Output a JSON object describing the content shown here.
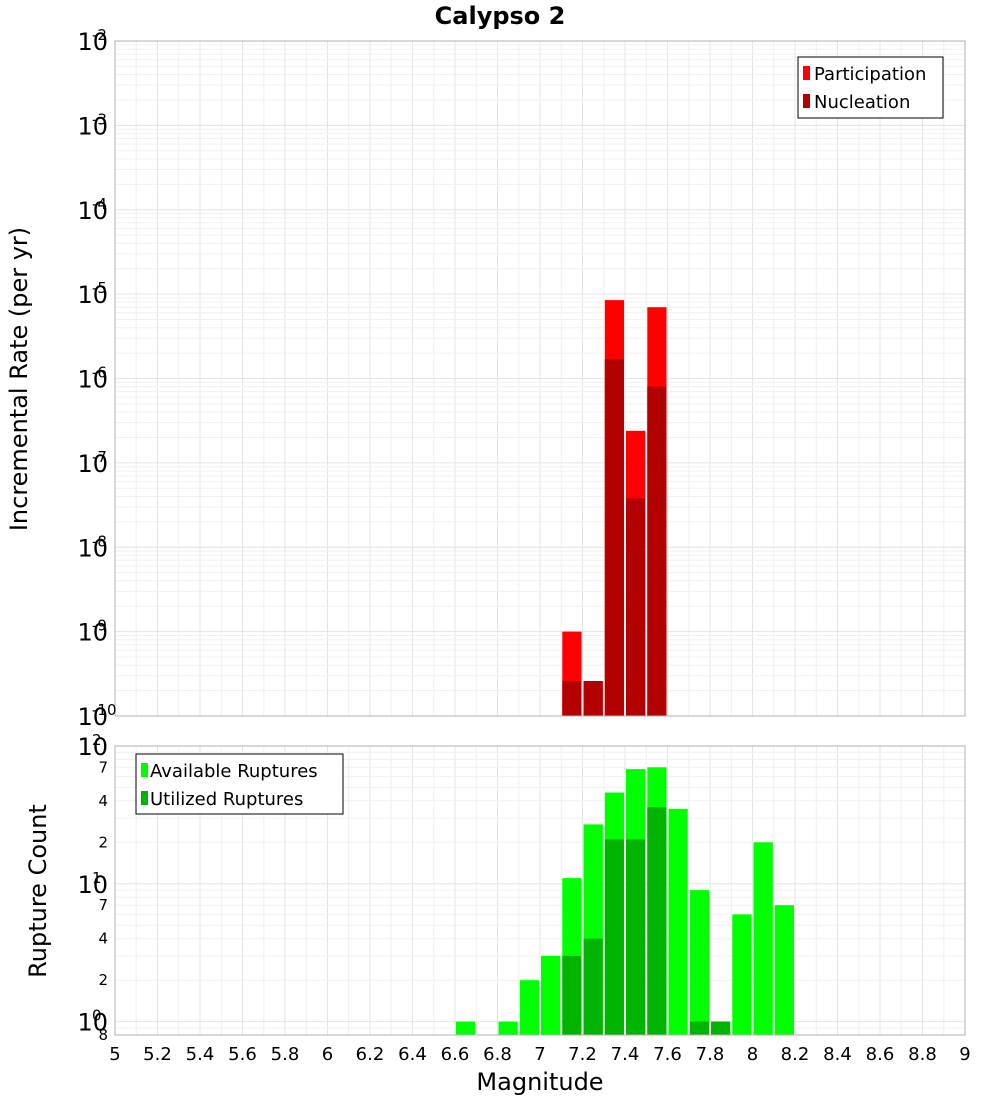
{
  "colors": {
    "participation": "#ff0000",
    "nucleation": "#b30000",
    "available": "#00ff00",
    "utilized": "#00b300",
    "grid": "#e4e4e4",
    "frame": "#b0b0b0"
  },
  "chart_data": [
    {
      "type": "bar",
      "title": "Calypso 2",
      "xlabel": "",
      "ylabel": "Incremental Rate (per yr)",
      "yscale": "log",
      "ylim": [
        1e-10,
        0.01
      ],
      "xlim": [
        5,
        9
      ],
      "bin_width": 0.1,
      "grid": true,
      "y_decade_ticks": [
        {
          "base": "10",
          "exp": "-10",
          "value": 1e-10
        },
        {
          "base": "10",
          "exp": "-9",
          "value": 1e-09
        },
        {
          "base": "10",
          "exp": "-8",
          "value": 1e-08
        },
        {
          "base": "10",
          "exp": "-7",
          "value": 1e-07
        },
        {
          "base": "10",
          "exp": "-6",
          "value": 1e-06
        },
        {
          "base": "10",
          "exp": "-5",
          "value": 1e-05
        },
        {
          "base": "10",
          "exp": "-4",
          "value": 0.0001
        },
        {
          "base": "10",
          "exp": "-3",
          "value": 0.001
        },
        {
          "base": "10",
          "exp": "-2",
          "value": 0.01
        }
      ],
      "legend": {
        "placement": "top-right",
        "entries": [
          "Participation",
          "Nucleation"
        ]
      },
      "series": [
        {
          "name": "Participation",
          "x": [
            7.15,
            7.25,
            7.35,
            7.45,
            7.55
          ],
          "values": [
            1e-09,
            2.6e-10,
            8.5e-06,
            2.4e-07,
            7e-06
          ]
        },
        {
          "name": "Nucleation",
          "x": [
            7.15,
            7.25,
            7.35,
            7.45,
            7.55
          ],
          "values": [
            2.6e-10,
            2.6e-10,
            1.7e-06,
            3.8e-08,
            8e-07
          ]
        }
      ]
    },
    {
      "type": "bar",
      "xlabel": "Magnitude",
      "ylabel": "Rupture Count",
      "yscale": "log",
      "ylim": [
        0.8,
        100
      ],
      "xlim": [
        5,
        9
      ],
      "bin_width": 0.1,
      "grid": true,
      "x_ticks": [
        "5",
        "5.2",
        "5.4",
        "5.6",
        "5.8",
        "6",
        "6.2",
        "6.4",
        "6.6",
        "6.8",
        "7",
        "7.2",
        "7.4",
        "7.6",
        "7.8",
        "8",
        "8.2",
        "8.4",
        "8.6",
        "8.8",
        "9"
      ],
      "y_decade_ticks": [
        {
          "base": "10",
          "exp": "0",
          "value": 1
        },
        {
          "base": "10",
          "exp": "1",
          "value": 10
        },
        {
          "base": "10",
          "exp": "2",
          "value": 100
        }
      ],
      "y_minor_ticks": [
        {
          "label": "8",
          "value": 0.8
        },
        {
          "label": "2",
          "value": 2
        },
        {
          "label": "4",
          "value": 4
        },
        {
          "label": "7",
          "value": 7
        },
        {
          "label": "2",
          "value": 20
        },
        {
          "label": "4",
          "value": 40
        },
        {
          "label": "7",
          "value": 70
        }
      ],
      "legend": {
        "placement": "top-left",
        "entries": [
          "Available Ruptures",
          "Utilized Ruptures"
        ]
      },
      "series": [
        {
          "name": "Available Ruptures",
          "x": [
            6.65,
            6.85,
            6.95,
            7.05,
            7.15,
            7.25,
            7.35,
            7.45,
            7.55,
            7.65,
            7.75,
            7.85,
            7.95,
            8.05,
            8.15
          ],
          "values": [
            1,
            1,
            2,
            3,
            11,
            27,
            46,
            68,
            70,
            35,
            9,
            1,
            6,
            20,
            7
          ]
        },
        {
          "name": "Utilized Ruptures",
          "x": [
            7.15,
            7.25,
            7.35,
            7.45,
            7.55,
            7.75,
            7.85
          ],
          "values": [
            3,
            4,
            21,
            21,
            36,
            1,
            1
          ]
        }
      ]
    }
  ]
}
